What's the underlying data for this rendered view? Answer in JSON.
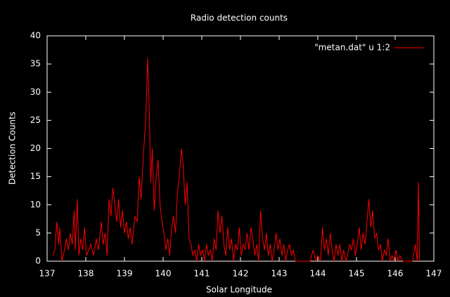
{
  "chart_data": {
    "type": "line",
    "title": "Radio detection counts",
    "x_label": "Solar Longitude",
    "y_label": "Detection Counts",
    "x": [
      137.15,
      137.2,
      137.25,
      137.3,
      137.33,
      137.38,
      137.45,
      137.5,
      137.55,
      137.6,
      137.65,
      137.7,
      137.73,
      137.78,
      137.82,
      137.87,
      137.92,
      137.97,
      138.02,
      138.08,
      138.13,
      138.2,
      138.27,
      138.33,
      138.4,
      138.45,
      138.5,
      138.55,
      138.6,
      138.65,
      138.7,
      138.75,
      138.8,
      138.85,
      138.9,
      138.95,
      139.0,
      139.05,
      139.1,
      139.15,
      139.2,
      139.27,
      139.33,
      139.38,
      139.43,
      139.5,
      139.55,
      139.6,
      139.63,
      139.68,
      139.72,
      139.77,
      139.82,
      139.87,
      139.92,
      139.97,
      140.02,
      140.07,
      140.12,
      140.17,
      140.22,
      140.27,
      140.32,
      140.37,
      140.42,
      140.47,
      140.52,
      140.57,
      140.62,
      140.67,
      140.72,
      140.77,
      140.82,
      140.87,
      140.92,
      140.97,
      141.02,
      141.07,
      141.12,
      141.17,
      141.22,
      141.27,
      141.32,
      141.37,
      141.42,
      141.47,
      141.52,
      141.57,
      141.62,
      141.67,
      141.72,
      141.77,
      141.82,
      141.87,
      141.92,
      141.97,
      142.02,
      142.07,
      142.12,
      142.17,
      142.22,
      142.27,
      142.32,
      142.37,
      142.42,
      142.47,
      142.52,
      142.57,
      142.62,
      142.67,
      142.72,
      142.77,
      142.82,
      142.87,
      142.92,
      142.97,
      143.02,
      143.07,
      143.12,
      143.17,
      143.22,
      143.27,
      143.32,
      143.37,
      143.42,
      143.5,
      143.6,
      143.7,
      143.8,
      143.88,
      143.95,
      144.0,
      144.07,
      144.12,
      144.17,
      144.22,
      144.27,
      144.32,
      144.37,
      144.42,
      144.47,
      144.52,
      144.57,
      144.62,
      144.67,
      144.72,
      144.77,
      144.82,
      144.87,
      144.92,
      144.97,
      145.02,
      145.07,
      145.12,
      145.17,
      145.22,
      145.27,
      145.32,
      145.37,
      145.42,
      145.47,
      145.52,
      145.57,
      145.62,
      145.67,
      145.72,
      145.77,
      145.82,
      145.87,
      145.92,
      145.97,
      146.02,
      146.07,
      146.12,
      146.2,
      146.3,
      146.4,
      146.45,
      146.52,
      146.57,
      146.6,
      146.63
    ],
    "series": [
      {
        "name": "\"metan.dat\" u 1:2",
        "color": "#ff0000",
        "values": [
          1,
          2,
          7,
          3,
          6,
          0,
          2,
          4,
          2,
          5,
          3,
          9,
          2,
          11,
          1,
          4,
          2,
          6,
          1,
          2,
          3,
          1,
          4,
          2,
          7,
          3,
          5,
          1,
          11,
          8,
          13,
          10,
          7,
          11,
          6,
          9,
          5,
          7,
          4,
          6,
          3,
          8,
          7,
          15,
          11,
          20,
          25,
          36,
          30,
          14,
          20,
          9,
          15,
          18,
          10,
          7,
          5,
          2,
          4,
          1,
          6,
          8,
          5,
          12,
          15,
          20,
          17,
          10,
          14,
          4,
          3,
          1,
          2,
          0,
          3,
          1,
          2,
          0,
          3,
          1,
          2,
          0,
          4,
          2,
          9,
          5,
          8,
          3,
          1,
          6,
          2,
          4,
          0,
          3,
          2,
          6,
          1,
          3,
          2,
          5,
          2,
          6,
          4,
          1,
          3,
          0,
          9,
          4,
          2,
          5,
          1,
          3,
          0,
          2,
          5,
          2,
          4,
          1,
          3,
          0,
          2,
          3,
          1,
          2,
          0,
          0,
          0,
          0,
          0,
          2,
          0,
          1,
          0,
          6,
          2,
          4,
          1,
          5,
          2,
          0,
          3,
          1,
          3,
          0,
          2,
          0,
          1,
          3,
          2,
          4,
          1,
          3,
          6,
          2,
          5,
          3,
          7,
          11,
          6,
          9,
          4,
          5,
          2,
          3,
          0,
          2,
          1,
          4,
          0,
          1,
          0,
          2,
          0,
          1,
          0,
          0,
          0,
          0,
          3,
          0,
          14,
          0
        ]
      }
    ],
    "xlim": [
      137,
      147
    ],
    "ylim": [
      0,
      40
    ],
    "xticks": [
      137,
      138,
      139,
      140,
      141,
      142,
      143,
      144,
      145,
      146,
      147
    ],
    "yticks": [
      0,
      5,
      10,
      15,
      20,
      25,
      30,
      35,
      40
    ],
    "legend": "upper right"
  }
}
